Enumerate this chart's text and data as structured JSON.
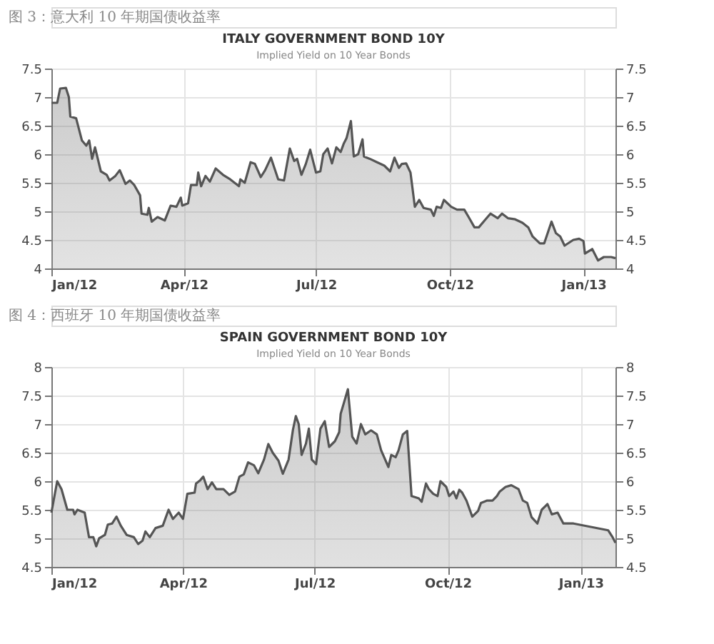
{
  "chart_data": [
    {
      "type": "area",
      "title": "ITALY GOVERNMENT BOND 10Y",
      "subtitle": "Implied Yield on 10 Year Bonds",
      "annotations": [
        "图 3：意大利 10 年期国债收益率"
      ],
      "color": "#555555",
      "x": [
        "2012-01-01",
        "2012-01-05",
        "2012-01-07",
        "2012-01-11",
        "2012-01-13",
        "2012-01-14",
        "2012-01-18",
        "2012-01-22",
        "2012-01-25",
        "2012-01-27",
        "2012-01-29",
        "2012-01-31",
        "2012-02-04",
        "2012-02-08",
        "2012-02-10",
        "2012-02-14",
        "2012-02-17",
        "2012-02-21",
        "2012-02-24",
        "2012-02-27",
        "2012-03-02",
        "2012-03-03",
        "2012-03-07",
        "2012-03-08",
        "2012-03-10",
        "2012-03-14",
        "2012-03-19",
        "2012-03-23",
        "2012-03-27",
        "2012-03-30",
        "2012-03-31",
        "2012-04-04",
        "2012-04-06",
        "2012-04-10",
        "2012-04-11",
        "2012-04-13",
        "2012-04-16",
        "2012-04-19",
        "2012-04-23",
        "2012-04-28",
        "2012-05-03",
        "2012-05-09",
        "2012-05-10",
        "2012-05-13",
        "2012-05-17",
        "2012-05-20",
        "2012-05-24",
        "2012-05-27",
        "2012-05-31",
        "2012-06-05",
        "2012-06-09",
        "2012-06-13",
        "2012-06-16",
        "2012-06-18",
        "2012-06-21",
        "2012-06-24",
        "2012-06-27",
        "2012-07-01",
        "2012-07-04",
        "2012-07-06",
        "2012-07-09",
        "2012-07-12",
        "2012-07-15",
        "2012-07-18",
        "2012-07-20",
        "2012-07-22",
        "2012-07-25",
        "2012-07-27",
        "2012-07-30",
        "2012-08-02",
        "2012-08-03",
        "2012-08-07",
        "2012-08-12",
        "2012-08-17",
        "2012-08-21",
        "2012-08-24",
        "2012-08-27",
        "2012-08-29",
        "2012-09-01",
        "2012-09-04",
        "2012-09-07",
        "2012-09-10",
        "2012-09-13",
        "2012-09-18",
        "2012-09-20",
        "2012-09-22",
        "2012-09-25",
        "2012-09-27",
        "2012-10-02",
        "2012-10-06",
        "2012-10-11",
        "2012-10-14",
        "2012-10-18",
        "2012-10-21",
        "2012-10-25",
        "2012-10-29",
        "2012-11-03",
        "2012-11-06",
        "2012-11-10",
        "2012-11-15",
        "2012-11-20",
        "2012-11-24",
        "2012-11-27",
        "2012-12-02",
        "2012-12-05",
        "2012-12-10",
        "2012-12-13",
        "2012-12-16",
        "2012-12-19",
        "2012-12-25",
        "2012-12-29",
        "2013-01-01",
        "2013-01-02",
        "2013-01-07",
        "2013-01-11",
        "2013-01-15",
        "2013-01-20",
        "2013-01-23"
      ],
      "values": [
        6.9,
        6.9,
        7.15,
        7.16,
        7.0,
        6.66,
        6.63,
        6.24,
        6.15,
        6.24,
        5.92,
        6.12,
        5.7,
        5.64,
        5.54,
        5.62,
        5.72,
        5.48,
        5.54,
        5.46,
        5.28,
        4.96,
        4.94,
        5.06,
        4.82,
        4.9,
        4.84,
        5.1,
        5.08,
        5.24,
        5.1,
        5.14,
        5.46,
        5.46,
        5.68,
        5.44,
        5.62,
        5.52,
        5.75,
        5.64,
        5.56,
        5.44,
        5.56,
        5.5,
        5.86,
        5.83,
        5.6,
        5.72,
        5.94,
        5.56,
        5.54,
        6.1,
        5.88,
        5.92,
        5.64,
        5.83,
        6.08,
        5.68,
        5.7,
        6.0,
        6.1,
        5.84,
        6.12,
        6.04,
        6.18,
        6.28,
        6.58,
        5.96,
        6.0,
        6.26,
        5.96,
        5.92,
        5.86,
        5.8,
        5.7,
        5.94,
        5.76,
        5.83,
        5.84,
        5.68,
        5.08,
        5.2,
        5.06,
        5.03,
        4.92,
        5.08,
        5.06,
        5.2,
        5.08,
        5.03,
        5.03,
        4.9,
        4.72,
        4.72,
        4.84,
        4.96,
        4.88,
        4.96,
        4.88,
        4.86,
        4.8,
        4.72,
        4.56,
        4.44,
        4.44,
        4.82,
        4.62,
        4.56,
        4.4,
        4.5,
        4.52,
        4.48,
        4.26,
        4.34,
        4.14,
        4.2,
        4.2,
        4.18
      ],
      "xlim": [
        "2012-01-01",
        "2013-01-23"
      ],
      "xticks": [
        {
          "value": "2012-01-01",
          "label": "Jan/12"
        },
        {
          "value": "2012-04-01",
          "label": "Apr/12"
        },
        {
          "value": "2012-07-01",
          "label": "Jul/12"
        },
        {
          "value": "2012-10-01",
          "label": "Oct/12"
        },
        {
          "value": "2013-01-01",
          "label": "Jan/13"
        }
      ],
      "ylim": [
        4,
        7.5
      ],
      "yticks": [
        4,
        4.5,
        5,
        5.5,
        6,
        6.5,
        7,
        7.5
      ],
      "y2lim": [
        4,
        7.5
      ],
      "y2ticks": [
        4,
        4.5,
        5,
        5.5,
        6,
        6.5,
        7,
        7.5
      ],
      "grid": true
    },
    {
      "type": "area",
      "title": "SPAIN GOVERNMENT BOND 10Y",
      "subtitle": "Implied Yield on 10 Year Bonds",
      "annotations": [
        "图 4：西班牙 10 年期国债收益率"
      ],
      "color": "#555555",
      "x": [
        "2012-01-01",
        "2012-01-05",
        "2012-01-08",
        "2012-01-12",
        "2012-01-16",
        "2012-01-17",
        "2012-01-19",
        "2012-01-24",
        "2012-01-27",
        "2012-01-30",
        "2012-02-01",
        "2012-02-03",
        "2012-02-07",
        "2012-02-09",
        "2012-02-12",
        "2012-02-15",
        "2012-02-18",
        "2012-02-22",
        "2012-02-27",
        "2012-03-01",
        "2012-03-04",
        "2012-03-06",
        "2012-03-09",
        "2012-03-13",
        "2012-03-18",
        "2012-03-22",
        "2012-03-25",
        "2012-03-29",
        "2012-04-01",
        "2012-04-04",
        "2012-04-09",
        "2012-04-10",
        "2012-04-13",
        "2012-04-15",
        "2012-04-18",
        "2012-04-21",
        "2012-04-24",
        "2012-04-29",
        "2012-05-03",
        "2012-05-07",
        "2012-05-10",
        "2012-05-13",
        "2012-05-16",
        "2012-05-20",
        "2012-05-23",
        "2012-05-27",
        "2012-05-30",
        "2012-06-02",
        "2012-06-06",
        "2012-06-09",
        "2012-06-13",
        "2012-06-16",
        "2012-06-18",
        "2012-06-20",
        "2012-06-22",
        "2012-06-25",
        "2012-06-27",
        "2012-06-29",
        "2012-07-02",
        "2012-07-05",
        "2012-07-08",
        "2012-07-11",
        "2012-07-15",
        "2012-07-18",
        "2012-07-19",
        "2012-07-24",
        "2012-07-27",
        "2012-07-30",
        "2012-08-02",
        "2012-08-05",
        "2012-08-09",
        "2012-08-13",
        "2012-08-16",
        "2012-08-21",
        "2012-08-23",
        "2012-08-26",
        "2012-08-28",
        "2012-08-31",
        "2012-09-03",
        "2012-09-06",
        "2012-09-11",
        "2012-09-13",
        "2012-09-16",
        "2012-09-18",
        "2012-09-21",
        "2012-09-24",
        "2012-09-26",
        "2012-09-30",
        "2012-10-02",
        "2012-10-05",
        "2012-10-07",
        "2012-10-09",
        "2012-10-11",
        "2012-10-14",
        "2012-10-18",
        "2012-10-22",
        "2012-10-24",
        "2012-10-28",
        "2012-11-01",
        "2012-11-04",
        "2012-11-06",
        "2012-11-10",
        "2012-11-14",
        "2012-11-19",
        "2012-11-22",
        "2012-11-25",
        "2012-11-28",
        "2012-12-02",
        "2012-12-05",
        "2012-12-09",
        "2012-12-12",
        "2012-12-16",
        "2012-12-20",
        "2012-12-27",
        "2013-01-20",
        "2013-01-23",
        "2013-01-25"
      ],
      "values": [
        5.45,
        6.0,
        5.86,
        5.5,
        5.5,
        5.42,
        5.5,
        5.45,
        5.02,
        5.02,
        4.86,
        5.0,
        5.06,
        5.24,
        5.26,
        5.38,
        5.22,
        5.06,
        5.02,
        4.9,
        4.96,
        5.12,
        5.02,
        5.18,
        5.22,
        5.5,
        5.34,
        5.45,
        5.34,
        5.78,
        5.8,
        5.96,
        6.02,
        6.08,
        5.86,
        5.98,
        5.86,
        5.86,
        5.76,
        5.82,
        6.08,
        6.12,
        6.33,
        6.28,
        6.14,
        6.38,
        6.65,
        6.5,
        6.36,
        6.13,
        6.38,
        6.9,
        7.14,
        7.0,
        6.46,
        6.66,
        6.92,
        6.38,
        6.3,
        6.92,
        7.05,
        6.6,
        6.7,
        6.86,
        7.18,
        7.61,
        6.78,
        6.66,
        7.0,
        6.82,
        6.89,
        6.82,
        6.54,
        6.25,
        6.46,
        6.42,
        6.54,
        6.82,
        6.88,
        5.74,
        5.7,
        5.64,
        5.96,
        5.86,
        5.78,
        5.74,
        6.0,
        5.9,
        5.74,
        5.82,
        5.7,
        5.85,
        5.8,
        5.66,
        5.38,
        5.48,
        5.62,
        5.66,
        5.66,
        5.74,
        5.82,
        5.9,
        5.93,
        5.86,
        5.66,
        5.62,
        5.37,
        5.26,
        5.5,
        5.6,
        5.42,
        5.45,
        5.26,
        5.26,
        5.14,
        5.02,
        4.92
      ],
      "xlim": [
        "2012-01-01",
        "2013-01-25"
      ],
      "xticks": [
        {
          "value": "2012-01-01",
          "label": "Jan/12"
        },
        {
          "value": "2012-04-01",
          "label": "Apr/12"
        },
        {
          "value": "2012-07-01",
          "label": "Jul/12"
        },
        {
          "value": "2012-10-01",
          "label": "Oct/12"
        },
        {
          "value": "2013-01-01",
          "label": "Jan/13"
        }
      ],
      "ylim": [
        4.5,
        8
      ],
      "yticks": [
        4.5,
        5,
        5.5,
        6,
        6.5,
        7,
        7.5,
        8
      ],
      "y2lim": [
        4.5,
        8
      ],
      "y2ticks": [
        4.5,
        5,
        5.5,
        6,
        6.5,
        7,
        7.5,
        8
      ],
      "grid": true
    }
  ]
}
